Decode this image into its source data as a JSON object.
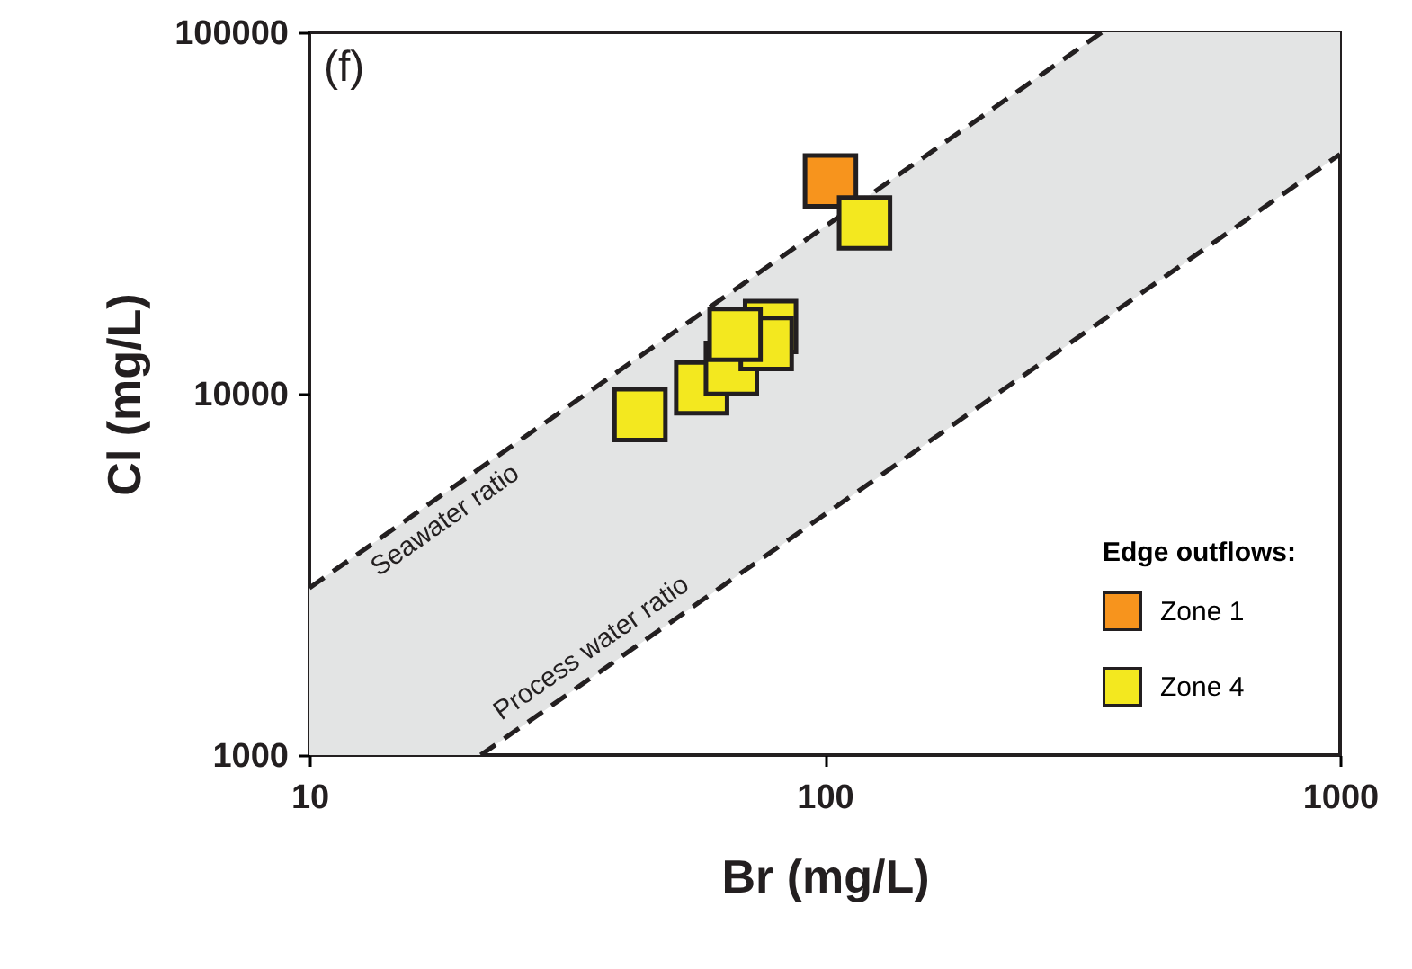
{
  "chart_data": {
    "type": "scatter",
    "xlabel": "Br (mg/L)",
    "ylabel": "Cl (mg/L)",
    "log": "xy",
    "xlim": [
      10,
      1000
    ],
    "ylim": [
      1000,
      100000
    ],
    "xticks": [
      10,
      100,
      1000
    ],
    "yticks": [
      1000,
      10000,
      100000
    ],
    "grid": false,
    "legend": "bottom right",
    "legend_title": "Edge outflows:",
    "marker": "square",
    "series": [
      {
        "type": "line",
        "line_style": "dashed",
        "marker": "none",
        "color": "#231f20",
        "x": [
          10,
          21.5,
          345,
          1000
        ],
        "values": [
          2900,
          6235,
          100000,
          null
        ],
        "lower": [
          1000,
          1000,
          15870,
          46000
        ],
        "upper": [
          2900,
          6235,
          100000,
          100000
        ]
      },
      {
        "type": "line",
        "line_style": "dashed",
        "marker": "none",
        "color": "#231f20",
        "x": [
          21.5,
          1000
        ],
        "values": [
          1000,
          46000
        ]
      },
      {
        "name": "Zone 1",
        "color": "#f7941d",
        "x": [
          102.6
        ],
        "values": [
          38800
        ]
      },
      {
        "name": "Zone 4",
        "color": "#f3e81f",
        "x": [
          119.5,
          43.8,
          57.7,
          65.9,
          78.5,
          77.0,
          67.0
        ],
        "values": [
          29700,
          8750,
          10380,
          11750,
          15350,
          13770,
          14590
        ]
      }
    ],
    "annotations": [
      "(f)",
      "Seawater ratio",
      "Process water ratio"
    ]
  }
}
